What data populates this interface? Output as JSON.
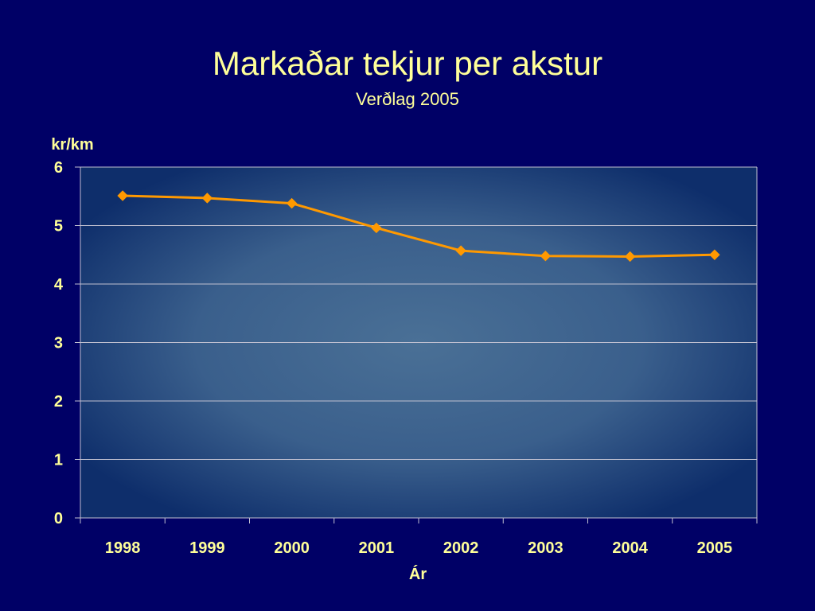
{
  "slide": {
    "title": "Markaðar tekjur per akstur",
    "subtitle": "Verðlag 2005"
  },
  "colors": {
    "background": "#000066",
    "text": "#FFFF99",
    "line": "#FF9900",
    "grid": "#C0C0D0",
    "plot_center": "#4A7096",
    "plot_edge": "#0E2E6B"
  },
  "chart_data": {
    "type": "line",
    "categories": [
      "1998",
      "1999",
      "2000",
      "2001",
      "2002",
      "2003",
      "2004",
      "2005"
    ],
    "series": [
      {
        "values": [
          5.51,
          5.47,
          5.38,
          4.96,
          4.57,
          4.48,
          4.47,
          4.5
        ],
        "color": "#FF9900",
        "marker": "diamond"
      }
    ],
    "ylabel": "kr/km",
    "xlabel": "Ár",
    "ylim": [
      0,
      6
    ],
    "yticks": [
      "0",
      "1",
      "2",
      "3",
      "4",
      "5",
      "6"
    ],
    "grid": true,
    "legend": "none"
  }
}
